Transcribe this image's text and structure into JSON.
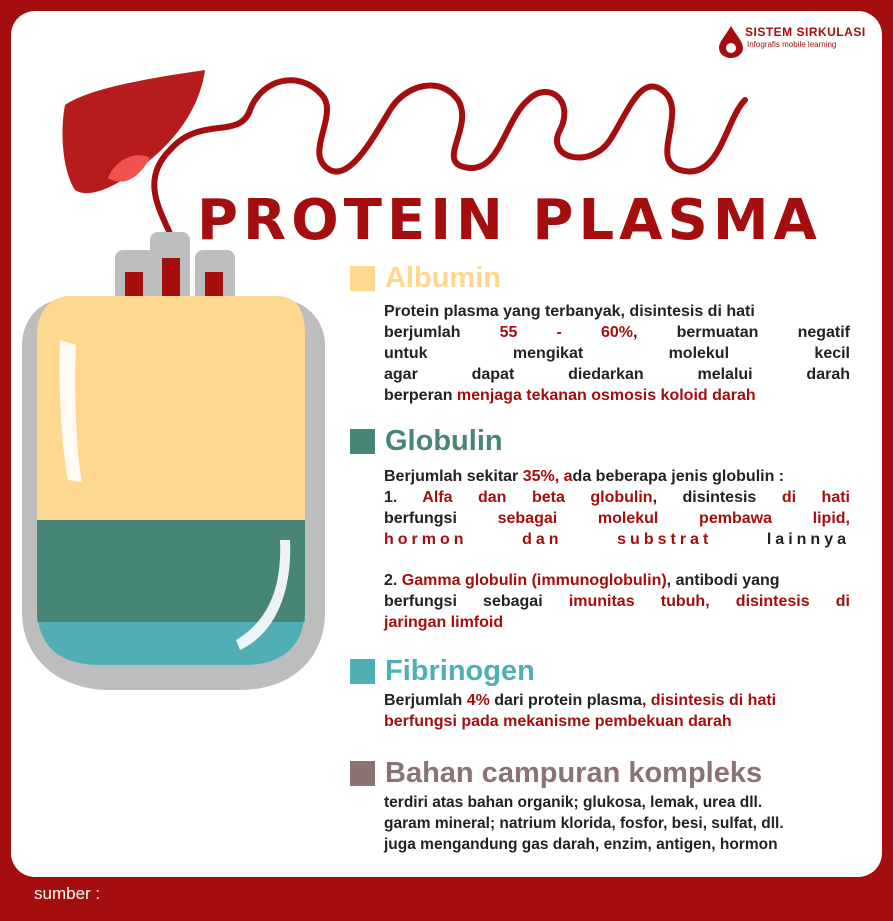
{
  "logo": {
    "title": "SISTEM SIRKULASI",
    "subtitle": "Infografis mobile learning"
  },
  "title": "PROTEIN PLASMA",
  "colors": {
    "brand": "#a40e0e",
    "albumin": "#fed88f",
    "globulin": "#478577",
    "fibrinogen": "#50aeb5",
    "bahan": "#8a7370"
  },
  "albumin": {
    "heading": "Albumin",
    "line1": "Protein plasma yang terbanyak, disintesis di hati",
    "line2a": "berjumlah ",
    "line2b": "55 - 60%",
    "line2c": ", bermuatan negatif",
    "line3": "untuk mengikat molekul kecil",
    "line4": "agar dapat diedarkan melalui darah",
    "line5a": "berperan ",
    "line5b": "menjaga tekanan osmosis koloid darah"
  },
  "globulin": {
    "heading": "Globulin",
    "intro_a": "Berjumlah sekitar ",
    "intro_b": "35%, a",
    "intro_c": "da beberapa jenis globulin :",
    "item1_a": "1",
    "item1_b": ". Alfa dan beta globulin",
    "item1_c": ", disintesis ",
    "item1_d": "di hati",
    "item1_e": "berfungsi ",
    "item1_f": "sebagai molekul pembawa lipid,",
    "item1_g": "hormon dan substrat",
    "item1_h": " lainnya",
    "item2_a": "2. ",
    "item2_b": "Gamma globulin (immunoglobulin)",
    "item2_c": ", antibodi yang",
    "item2_d": "berfungsi sebagai ",
    "item2_e": "imunitas tubuh, disintesis di",
    "item2_f": "jaringan limfoid"
  },
  "fibrinogen": {
    "heading": "Fibrinogen",
    "line1a": "Berjumlah ",
    "line1b": "4%",
    "line1c": " dari protein plasma",
    "line1d": ", disintesis di hati",
    "line2": "berfungsi pada mekanisme pembekuan darah"
  },
  "bahan": {
    "heading": "Bahan campuran kompleks",
    "line1": "terdiri atas bahan organik; glukosa, lemak, urea dll.",
    "line2": "garam mineral; natrium klorida, fosfor, besi, sulfat, dll.",
    "line3": "juga mengandung gas darah, enzim, antigen, hormon"
  },
  "footer": {
    "sumber": "sumber :"
  }
}
